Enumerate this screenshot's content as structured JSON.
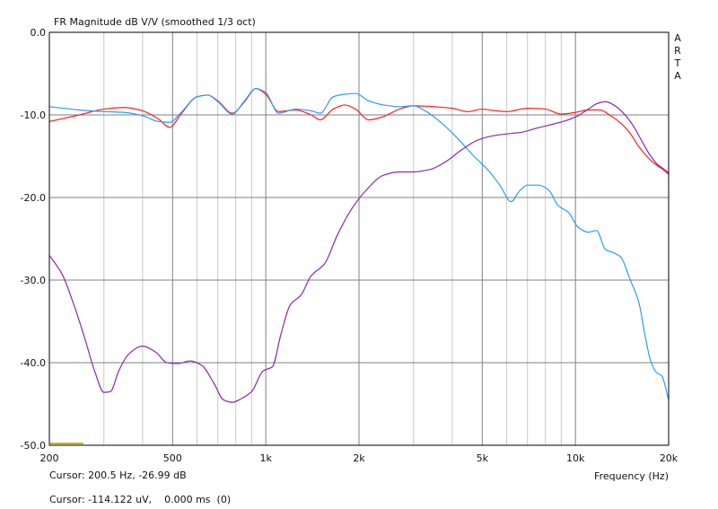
{
  "chart_data": {
    "type": "line",
    "title": "FR Magnitude dB V/V (smoothed 1/3 oct)",
    "side_label": [
      "A",
      "R",
      "T",
      "A"
    ],
    "xlabel": "Frequency (Hz)",
    "ylabel": "",
    "x_scale": "log",
    "xlim": [
      200,
      20000
    ],
    "ylim": [
      -50,
      0
    ],
    "x_ticks": [
      {
        "value": 200,
        "label": "200"
      },
      {
        "value": 500,
        "label": "500"
      },
      {
        "value": 1000,
        "label": "1k"
      },
      {
        "value": 2000,
        "label": "2k"
      },
      {
        "value": 5000,
        "label": "5k"
      },
      {
        "value": 10000,
        "label": "10k"
      },
      {
        "value": 20000,
        "label": "20k"
      }
    ],
    "y_ticks": [
      {
        "value": 0,
        "label": "0.0"
      },
      {
        "value": -10,
        "label": "-10.0"
      },
      {
        "value": -20,
        "label": "-20.0"
      },
      {
        "value": -30,
        "label": "-30.0"
      },
      {
        "value": -40,
        "label": "-40.0"
      },
      {
        "value": -50,
        "label": "-50.0"
      }
    ],
    "grid": true,
    "series": [
      {
        "color": "#ff2020",
        "points": [
          [
            200,
            -10.8
          ],
          [
            250,
            -10
          ],
          [
            300,
            -9.3
          ],
          [
            350,
            -9.1
          ],
          [
            400,
            -9.5
          ],
          [
            450,
            -10.5
          ],
          [
            490,
            -11.5
          ],
          [
            530,
            -10
          ],
          [
            600,
            -7.8
          ],
          [
            650,
            -7.6
          ],
          [
            700,
            -8.3
          ],
          [
            780,
            -9.8
          ],
          [
            850,
            -8.5
          ],
          [
            930,
            -6.8
          ],
          [
            1000,
            -7.5
          ],
          [
            1100,
            -9.6
          ],
          [
            1250,
            -9.4
          ],
          [
            1400,
            -10
          ],
          [
            1500,
            -10.6
          ],
          [
            1650,
            -9.3
          ],
          [
            1800,
            -8.8
          ],
          [
            1950,
            -9.3
          ],
          [
            2150,
            -10.6
          ],
          [
            2400,
            -10.2
          ],
          [
            2700,
            -9.3
          ],
          [
            3000,
            -8.9
          ],
          [
            3500,
            -9
          ],
          [
            4000,
            -9.2
          ],
          [
            4500,
            -9.6
          ],
          [
            5000,
            -9.3
          ],
          [
            5500,
            -9.5
          ],
          [
            6000,
            -9.6
          ],
          [
            7000,
            -9.2
          ],
          [
            8000,
            -9.3
          ],
          [
            9000,
            -9.9
          ],
          [
            10000,
            -9.7
          ],
          [
            11000,
            -9.4
          ],
          [
            12000,
            -9.4
          ],
          [
            13000,
            -10.1
          ],
          [
            14000,
            -11
          ],
          [
            15000,
            -12.2
          ],
          [
            16000,
            -13.8
          ],
          [
            17000,
            -15
          ],
          [
            18000,
            -15.9
          ],
          [
            19000,
            -16.5
          ],
          [
            20000,
            -17.2
          ]
        ]
      },
      {
        "color": "#2a9df4",
        "points": [
          [
            200,
            -9
          ],
          [
            250,
            -9.4
          ],
          [
            300,
            -9.6
          ],
          [
            350,
            -9.7
          ],
          [
            400,
            -10.1
          ],
          [
            450,
            -10.8
          ],
          [
            490,
            -10.9
          ],
          [
            530,
            -9.8
          ],
          [
            600,
            -7.8
          ],
          [
            650,
            -7.6
          ],
          [
            700,
            -8.4
          ],
          [
            780,
            -9.9
          ],
          [
            850,
            -8.4
          ],
          [
            930,
            -6.8
          ],
          [
            1000,
            -7.3
          ],
          [
            1100,
            -9.8
          ],
          [
            1250,
            -9.3
          ],
          [
            1400,
            -9.5
          ],
          [
            1500,
            -9.8
          ],
          [
            1650,
            -7.8
          ],
          [
            1800,
            -7.5
          ],
          [
            1950,
            -7.4
          ],
          [
            2150,
            -8.3
          ],
          [
            2400,
            -8.8
          ],
          [
            2700,
            -9
          ],
          [
            3000,
            -8.9
          ],
          [
            3300,
            -9.6
          ],
          [
            3700,
            -11
          ],
          [
            4200,
            -13
          ],
          [
            4700,
            -15
          ],
          [
            5200,
            -16.6
          ],
          [
            5700,
            -18.5
          ],
          [
            6200,
            -20.5
          ],
          [
            6600,
            -19.2
          ],
          [
            7000,
            -18.5
          ],
          [
            7600,
            -18.5
          ],
          [
            8200,
            -19.1
          ],
          [
            8800,
            -21
          ],
          [
            9500,
            -21.8
          ],
          [
            10200,
            -23.6
          ],
          [
            11000,
            -24.2
          ],
          [
            11700,
            -24
          ],
          [
            12500,
            -26.3
          ],
          [
            13300,
            -26.7
          ],
          [
            14000,
            -27.2
          ],
          [
            15000,
            -29.9
          ],
          [
            16000,
            -32.6
          ],
          [
            16800,
            -36.8
          ],
          [
            17500,
            -39.8
          ],
          [
            18300,
            -41.2
          ],
          [
            19000,
            -41.6
          ],
          [
            20000,
            -44.5
          ]
        ]
      },
      {
        "color": "#8a2aa8",
        "points": [
          [
            200,
            -27
          ],
          [
            220,
            -29.3
          ],
          [
            240,
            -33
          ],
          [
            260,
            -37
          ],
          [
            280,
            -41
          ],
          [
            300,
            -43.6
          ],
          [
            315,
            -43.5
          ],
          [
            335,
            -41
          ],
          [
            360,
            -39
          ],
          [
            400,
            -38
          ],
          [
            440,
            -38.7
          ],
          [
            480,
            -40
          ],
          [
            520,
            -40.1
          ],
          [
            570,
            -39.8
          ],
          [
            620,
            -40.3
          ],
          [
            680,
            -42.5
          ],
          [
            730,
            -44.5
          ],
          [
            780,
            -44.8
          ],
          [
            830,
            -44.4
          ],
          [
            900,
            -43.5
          ],
          [
            980,
            -41
          ],
          [
            1050,
            -40.5
          ],
          [
            1120,
            -36.5
          ],
          [
            1200,
            -33
          ],
          [
            1300,
            -31.8
          ],
          [
            1400,
            -29.5
          ],
          [
            1550,
            -28
          ],
          [
            1700,
            -24.6
          ],
          [
            1900,
            -21.3
          ],
          [
            2100,
            -19.2
          ],
          [
            2400,
            -17.3
          ],
          [
            2700,
            -16.9
          ],
          [
            3000,
            -16.9
          ],
          [
            3400,
            -16.6
          ],
          [
            3800,
            -15.7
          ],
          [
            4300,
            -14.2
          ],
          [
            4800,
            -13.1
          ],
          [
            5300,
            -12.6
          ],
          [
            6000,
            -12.3
          ],
          [
            6700,
            -12.1
          ],
          [
            7500,
            -11.6
          ],
          [
            8300,
            -11.2
          ],
          [
            9300,
            -10.7
          ],
          [
            10200,
            -10.1
          ],
          [
            11000,
            -9.3
          ],
          [
            11800,
            -8.6
          ],
          [
            12500,
            -8.4
          ],
          [
            13300,
            -8.8
          ],
          [
            14300,
            -9.8
          ],
          [
            15300,
            -11.2
          ],
          [
            16300,
            -13
          ],
          [
            17300,
            -14.7
          ],
          [
            18300,
            -15.9
          ],
          [
            19200,
            -16.5
          ],
          [
            20000,
            -17
          ]
        ]
      }
    ]
  },
  "status": {
    "cursor1": "Cursor: 200.5 Hz, -26.99 dB",
    "cursor2": "Cursor: -114.122 uV,    0.000 ms  (0)"
  },
  "colors": {
    "grid_major": "#808080",
    "grid_minor": "#c8c8c8",
    "frame": "#000000",
    "marker": "#c8b400"
  }
}
